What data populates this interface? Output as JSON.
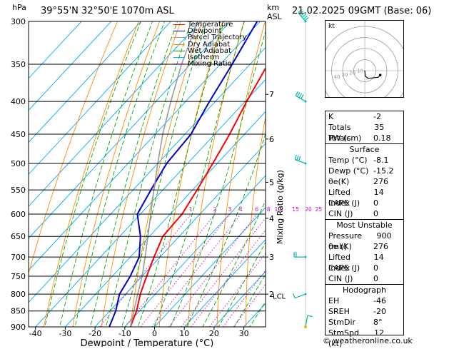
{
  "header": {
    "hpa_label": "hPa",
    "location": "39°55'N  32°50'E  1070m  ASL",
    "km_label": "km",
    "asl_label": "ASL",
    "datetime": "21.02.2025  09GMT  (Base: 06)",
    "footer": "© weatheronline.co.uk"
  },
  "legend": [
    {
      "label": "Temperature",
      "color": "#ff0000",
      "style": "solid"
    },
    {
      "label": "Dewpoint",
      "color": "#0000cc",
      "style": "solid"
    },
    {
      "label": "Parcel Trajectory",
      "color": "#999999",
      "style": "solid"
    },
    {
      "label": "Dry Adiabat",
      "color": "#ff8c00",
      "style": "solid"
    },
    {
      "label": "Wet Adiabat",
      "color": "#00aa00",
      "style": "solid"
    },
    {
      "label": "Isotherm",
      "color": "#00aaff",
      "style": "solid"
    },
    {
      "label": "Mixing Ratio",
      "color": "#cc00cc",
      "style": "dot"
    }
  ],
  "colors": {
    "temperature": "#ff0000",
    "dewpoint": "#0000cc",
    "parcel": "#999999",
    "dry_adiabat": "#ff8c00",
    "wet_adiabat": "#00aa00",
    "isotherm": "#00aaff",
    "mixing_ratio": "#cc00cc",
    "wind": "#00bbaa"
  },
  "chart_data": {
    "type": "line",
    "title": "39°55'N  32°50'E  1070m  ASL",
    "xlabel": "Dewpoint / Temperature (°C)",
    "ylabel": "hPa",
    "y2label": "Mixing Ratio (g/kg)",
    "xlim": [
      -45,
      37
    ],
    "ylim": [
      900,
      300
    ],
    "y_log": true,
    "x_ticks": [
      -40,
      -30,
      -20,
      -10,
      0,
      10,
      20,
      30
    ],
    "pressure_levels": [
      300,
      350,
      400,
      450,
      500,
      550,
      600,
      650,
      700,
      750,
      800,
      850,
      900
    ],
    "km_ticks": [
      {
        "km": "7",
        "p": 390
      },
      {
        "km": "6",
        "p": 458
      },
      {
        "km": "5",
        "p": 535
      },
      {
        "km": "4",
        "p": 609
      },
      {
        "km": "3",
        "p": 700
      },
      {
        "km": "2",
        "p": 800
      }
    ],
    "lcl": {
      "label": "LCL",
      "p": 805
    },
    "mixing_ratio_labels": [
      "1",
      "2",
      "3",
      "4",
      "6",
      "8",
      "10",
      "15",
      "20",
      "25"
    ],
    "series": [
      {
        "name": "Temperature",
        "points": [
          [
            900,
            -8.1
          ],
          [
            850,
            -11
          ],
          [
            800,
            -15
          ],
          [
            750,
            -18.5
          ],
          [
            700,
            -22
          ],
          [
            650,
            -25.5
          ],
          [
            600,
            -26
          ],
          [
            550,
            -28.5
          ],
          [
            500,
            -31.5
          ],
          [
            450,
            -35
          ],
          [
            400,
            -39.5
          ],
          [
            350,
            -44
          ],
          [
            300,
            -47
          ]
        ]
      },
      {
        "name": "Dewpoint",
        "points": [
          [
            900,
            -15.2
          ],
          [
            850,
            -18
          ],
          [
            800,
            -22
          ],
          [
            750,
            -24
          ],
          [
            700,
            -27
          ],
          [
            650,
            -33
          ],
          [
            600,
            -41
          ],
          [
            550,
            -44
          ],
          [
            500,
            -47
          ],
          [
            450,
            -48
          ],
          [
            400,
            -52
          ],
          [
            350,
            -56
          ],
          [
            300,
            -61
          ]
        ]
      },
      {
        "name": "Parcel Trajectory",
        "points": [
          [
            900,
            -8.1
          ],
          [
            805,
            -15.5
          ],
          [
            750,
            -20
          ],
          [
            700,
            -25
          ],
          [
            650,
            -30.5
          ],
          [
            600,
            -36.5
          ],
          [
            550,
            -43
          ],
          [
            500,
            -50
          ],
          [
            450,
            -57.5
          ],
          [
            400,
            -65
          ],
          [
            350,
            -73
          ],
          [
            300,
            -81
          ]
        ]
      }
    ]
  },
  "wind_barbs": [
    {
      "p": 300,
      "dir_deg": 320,
      "speed_kt": 55
    },
    {
      "p": 400,
      "dir_deg": 300,
      "speed_kt": 40
    },
    {
      "p": 500,
      "dir_deg": 290,
      "speed_kt": 30
    },
    {
      "p": 700,
      "dir_deg": 270,
      "speed_kt": 15
    },
    {
      "p": 800,
      "dir_deg": 250,
      "speed_kt": 5
    },
    {
      "p": 900,
      "dir_deg": 10,
      "speed_kt": 5
    }
  ],
  "hodograph": {
    "label": "kt",
    "ring_labels": [
      "10",
      "20",
      "30",
      "40"
    ],
    "trace": [
      [
        0,
        0
      ],
      [
        0.5,
        -5
      ],
      [
        3,
        -7
      ],
      [
        12,
        -6
      ],
      [
        14,
        -4
      ]
    ]
  },
  "indices": {
    "top": [
      {
        "label": "K",
        "value": "-2"
      },
      {
        "label": "Totals Totals",
        "value": "35"
      },
      {
        "label": "PW (cm)",
        "value": "0.18"
      }
    ],
    "surface_title": "Surface",
    "surface": [
      {
        "label": "Temp (°C)",
        "value": "-8.1"
      },
      {
        "label": "Dewp (°C)",
        "value": "-15.2"
      },
      {
        "label": "θe(K)",
        "value": "276"
      },
      {
        "label": "Lifted Index",
        "value": "14"
      },
      {
        "label": "CAPE (J)",
        "value": "0"
      },
      {
        "label": "CIN (J)",
        "value": "0"
      }
    ],
    "unstable_title": "Most Unstable",
    "unstable": [
      {
        "label": "Pressure (mb)",
        "value": "900"
      },
      {
        "label": "θe (K)",
        "value": "276"
      },
      {
        "label": "Lifted Index",
        "value": "14"
      },
      {
        "label": "CAPE (J)",
        "value": "0"
      },
      {
        "label": "CIN (J)",
        "value": "0"
      }
    ],
    "hodo_title": "Hodograph",
    "hodo": [
      {
        "label": "EH",
        "value": "-46"
      },
      {
        "label": "SREH",
        "value": "-20"
      },
      {
        "label": "StmDir",
        "value": "8°"
      },
      {
        "label": "StmSpd (kt)",
        "value": "12"
      }
    ]
  }
}
